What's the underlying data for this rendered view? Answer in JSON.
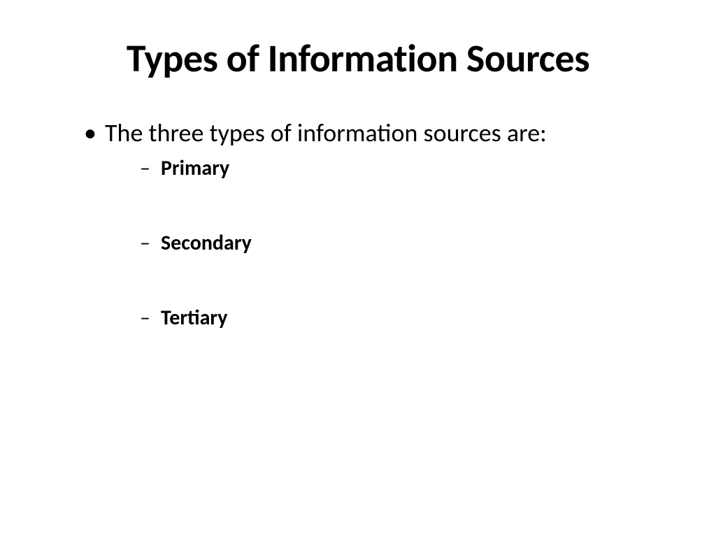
{
  "slide": {
    "title": "Types of Information Sources",
    "main_bullet": "The three types of information sources are:",
    "sub_items": {
      "item1": "Primary",
      "item2": "Secondary",
      "item3": "Tertiary"
    },
    "styling": {
      "background_color": "#ffffff",
      "text_color": "#000000",
      "title_fontsize": 56,
      "title_fontweight": 700,
      "main_bullet_fontsize": 36,
      "main_bullet_fontweight": 400,
      "sub_bullet_fontsize": 30,
      "sub_bullet_fontweight": 700,
      "main_bullet_marker": "•",
      "sub_bullet_marker": "–",
      "font_family": "Calibri"
    }
  }
}
